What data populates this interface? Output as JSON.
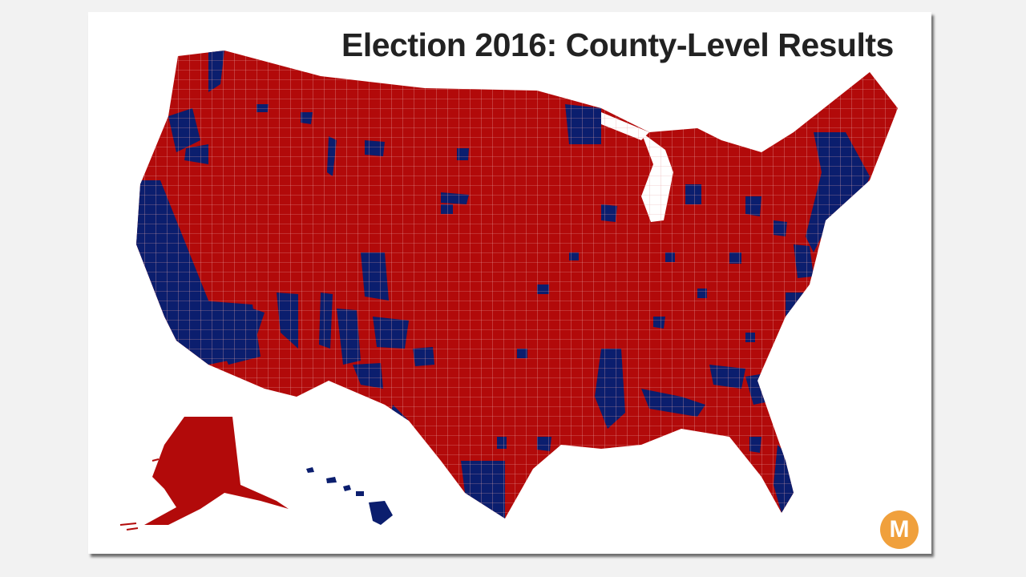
{
  "title": "Election 2016: County-Level Results",
  "logo": {
    "letter": "M",
    "color": "#f0a03c"
  },
  "colors": {
    "republican": "#b20a0a",
    "democrat": "#0b1e6e",
    "county_border": "#e8a8a8",
    "background": "#ffffff"
  },
  "regions": [
    "contiguous-us",
    "alaska",
    "hawaii"
  ]
}
